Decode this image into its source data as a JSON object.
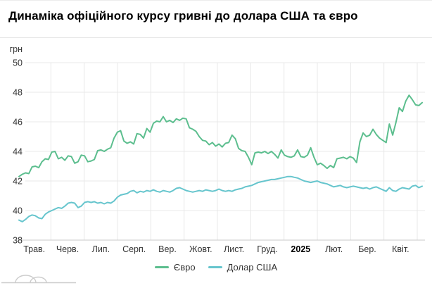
{
  "page": {
    "title": "Динаміка офіційного курсу гривні до долара США та євро"
  },
  "colors": {
    "grid": "#e8e8e8",
    "axis_line": "#c9c9c9",
    "tick_text": "#333333",
    "bold_tick_text": "#000000",
    "title_text": "#000000",
    "watermark": "#cccccc",
    "euro_line": "#5cbe8e",
    "dollar_line": "#66c5cd"
  },
  "chart_data": {
    "type": "line",
    "title": "Динаміка офіційного курсу гривні до долара США та євро",
    "grid": true,
    "legend_position": "bottom",
    "y_axis": {
      "unit_label": "грн",
      "ticks": [
        50,
        48,
        46,
        44,
        42,
        40,
        38
      ],
      "min": 38,
      "max": 50
    },
    "x_axis": {
      "tick_labels": [
        "Трав.",
        "Черв.",
        "Лип.",
        "Серп.",
        "Вер.",
        "Жовт.",
        "Лист.",
        "Груд.",
        "2025",
        "Лют.",
        "Бер.",
        "Квіт."
      ],
      "bold_label": "2025"
    },
    "series": [
      {
        "name": "Євро",
        "color": "#5cbe8e",
        "values": [
          42.3,
          42.45,
          42.55,
          42.5,
          42.95,
          43.0,
          42.9,
          43.3,
          43.5,
          43.45,
          43.95,
          44.0,
          43.5,
          43.6,
          43.4,
          43.7,
          43.65,
          43.2,
          43.3,
          43.75,
          43.7,
          43.3,
          43.35,
          43.45,
          44.05,
          44.1,
          44.0,
          44.15,
          44.25,
          44.9,
          45.3,
          45.4,
          44.7,
          44.55,
          44.65,
          44.5,
          45.2,
          45.15,
          44.9,
          45.55,
          45.3,
          45.9,
          46.05,
          46.0,
          46.35,
          46.0,
          46.1,
          45.95,
          46.2,
          46.1,
          46.25,
          46.2,
          45.6,
          45.5,
          45.35,
          45.0,
          44.75,
          44.7,
          44.45,
          44.6,
          44.35,
          44.5,
          44.3,
          44.55,
          44.6,
          45.1,
          44.85,
          44.2,
          44.05,
          44.0,
          43.6,
          43.1,
          43.9,
          43.95,
          43.9,
          44.0,
          43.85,
          44.0,
          43.8,
          43.55,
          44.1,
          43.75,
          43.65,
          43.6,
          43.7,
          44.1,
          43.65,
          43.6,
          43.75,
          44.25,
          43.6,
          43.1,
          43.2,
          43.05,
          42.85,
          43.05,
          42.9,
          43.5,
          43.55,
          43.6,
          43.5,
          43.65,
          43.55,
          43.25,
          44.65,
          45.25,
          45.0,
          45.1,
          45.5,
          45.15,
          44.9,
          44.75,
          44.6,
          45.85,
          45.1,
          45.95,
          46.95,
          46.7,
          47.4,
          47.8,
          47.5,
          47.15,
          47.1,
          47.3
        ]
      },
      {
        "name": "Долар США",
        "color": "#66c5cd",
        "values": [
          39.35,
          39.25,
          39.4,
          39.6,
          39.7,
          39.65,
          39.5,
          39.45,
          39.75,
          39.9,
          40.0,
          40.1,
          40.2,
          40.15,
          40.3,
          40.5,
          40.55,
          40.5,
          40.2,
          40.3,
          40.55,
          40.6,
          40.55,
          40.6,
          40.5,
          40.55,
          40.45,
          40.55,
          40.5,
          40.65,
          40.9,
          41.05,
          41.1,
          41.15,
          41.3,
          41.35,
          41.2,
          41.3,
          41.25,
          41.35,
          41.3,
          41.4,
          41.3,
          41.25,
          41.35,
          41.3,
          41.25,
          41.35,
          41.5,
          41.55,
          41.45,
          41.35,
          41.3,
          41.25,
          41.3,
          41.35,
          41.3,
          41.4,
          41.35,
          41.3,
          41.35,
          41.45,
          41.35,
          41.3,
          41.35,
          41.3,
          41.4,
          41.45,
          41.5,
          41.6,
          41.65,
          41.7,
          41.8,
          41.9,
          41.95,
          42.0,
          42.05,
          42.1,
          42.1,
          42.15,
          42.2,
          42.25,
          42.3,
          42.3,
          42.25,
          42.2,
          42.1,
          42.0,
          41.95,
          41.9,
          41.95,
          42.0,
          41.9,
          41.85,
          41.8,
          41.7,
          41.6,
          41.65,
          41.7,
          41.6,
          41.55,
          41.6,
          41.65,
          41.6,
          41.55,
          41.5,
          41.55,
          41.45,
          41.55,
          41.6,
          41.5,
          41.4,
          41.3,
          41.55,
          41.35,
          41.3,
          41.45,
          41.55,
          41.5,
          41.45,
          41.65,
          41.7,
          41.55,
          41.65
        ]
      }
    ]
  }
}
